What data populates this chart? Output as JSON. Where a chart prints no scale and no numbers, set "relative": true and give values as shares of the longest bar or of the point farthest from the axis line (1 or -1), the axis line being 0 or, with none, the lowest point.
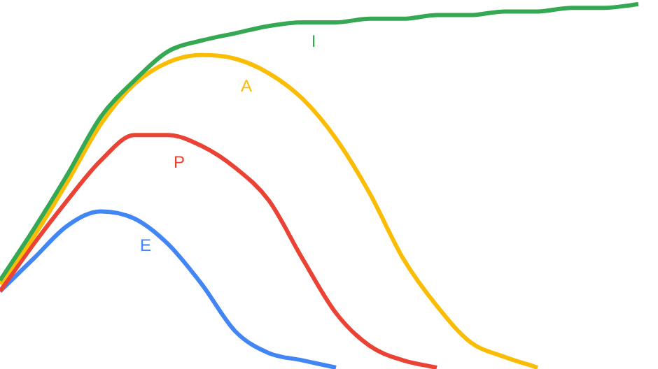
{
  "chart_data": {
    "type": "line",
    "relative": true,
    "legend": false,
    "categories": [
      null,
      null,
      null,
      null,
      null,
      null,
      null,
      null,
      null,
      null,
      null,
      null,
      null,
      null,
      null,
      null,
      null,
      null,
      null,
      null
    ],
    "series": [
      {
        "name": "I",
        "color": "#34a853",
        "values": [
          0.24,
          0.38,
          0.53,
          0.69,
          0.79,
          0.87,
          0.9,
          0.92,
          0.94,
          0.95,
          0.95,
          0.96,
          0.96,
          0.97,
          0.97,
          0.98,
          0.98,
          0.99,
          0.99,
          1
        ]
      },
      {
        "name": "A",
        "color": "#fbbc04",
        "values": [
          0.23,
          0.36,
          0.51,
          0.67,
          0.78,
          0.84,
          0.86,
          0.85,
          0.81,
          0.74,
          0.63,
          0.48,
          0.3,
          0.17,
          0.07,
          0.03,
          0.0,
          null,
          null,
          null
        ]
      },
      {
        "name": "P",
        "color": "#ea4335",
        "values": [
          0.21,
          0.34,
          0.46,
          0.57,
          0.64,
          0.64,
          0.61,
          0.55,
          0.46,
          0.3,
          0.15,
          0.06,
          0.02,
          0.0,
          null,
          null,
          null,
          null,
          null,
          null
        ]
      },
      {
        "name": "E",
        "color": "#4285f4",
        "values": [
          0.21,
          0.3,
          0.39,
          0.43,
          0.41,
          0.34,
          0.23,
          0.1,
          0.04,
          0.02,
          0.0,
          null,
          null,
          null,
          null,
          null,
          null,
          null,
          null,
          null
        ]
      }
    ]
  }
}
